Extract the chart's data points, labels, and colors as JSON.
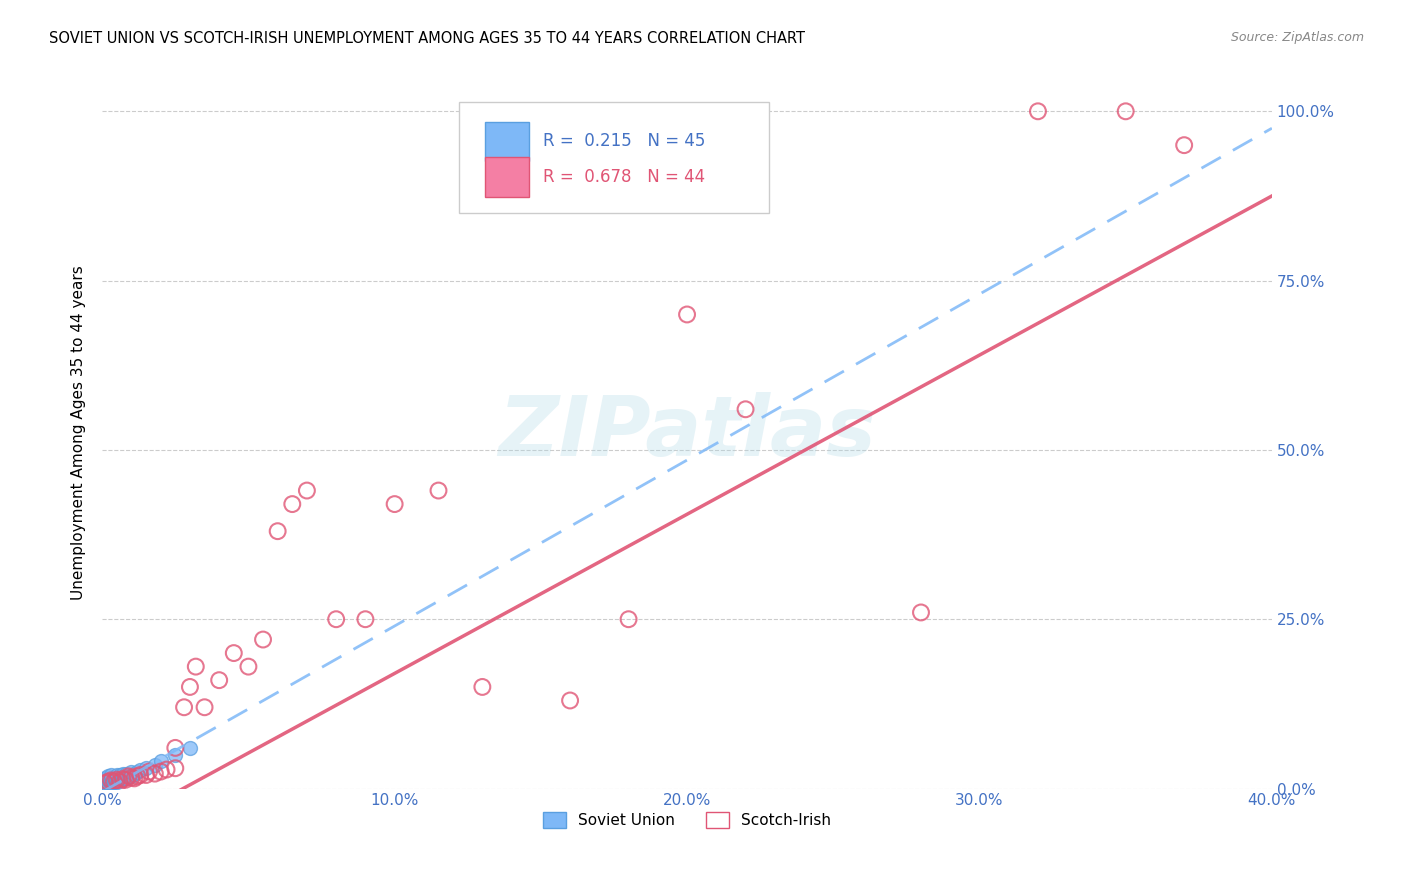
{
  "title": "SOVIET UNION VS SCOTCH-IRISH UNEMPLOYMENT AMONG AGES 35 TO 44 YEARS CORRELATION CHART",
  "source": "Source: ZipAtlas.com",
  "ylabel": "Unemployment Among Ages 35 to 44 years",
  "xlim": [
    0.0,
    0.4
  ],
  "ylim": [
    0.0,
    1.05
  ],
  "soviet_R": 0.215,
  "soviet_N": 45,
  "scotch_R": 0.678,
  "scotch_N": 44,
  "soviet_color": "#7EB8F7",
  "soviet_edge_color": "#5A9FE0",
  "scotch_color": "#F47FA4",
  "scotch_edge_color": "#E05575",
  "soviet_line_color": "#7EB8F7",
  "scotch_line_color": "#E05575",
  "watermark": "ZIPatlas",
  "legend_R1_color": "#4472C4",
  "legend_R2_color": "#E05575",
  "axis_color": "#4472C4",
  "soviet_x": [
    0.0,
    0.0,
    0.001,
    0.001,
    0.001,
    0.001,
    0.001,
    0.001,
    0.002,
    0.002,
    0.002,
    0.002,
    0.002,
    0.002,
    0.003,
    0.003,
    0.003,
    0.003,
    0.003,
    0.004,
    0.004,
    0.004,
    0.005,
    0.005,
    0.005,
    0.005,
    0.006,
    0.006,
    0.006,
    0.007,
    0.007,
    0.007,
    0.008,
    0.008,
    0.009,
    0.01,
    0.01,
    0.011,
    0.012,
    0.013,
    0.015,
    0.018,
    0.02,
    0.025,
    0.03
  ],
  "soviet_y": [
    0.0,
    0.002,
    0.003,
    0.005,
    0.007,
    0.01,
    0.012,
    0.015,
    0.005,
    0.008,
    0.01,
    0.012,
    0.015,
    0.018,
    0.008,
    0.01,
    0.013,
    0.016,
    0.02,
    0.01,
    0.013,
    0.016,
    0.01,
    0.013,
    0.016,
    0.02,
    0.012,
    0.015,
    0.02,
    0.015,
    0.018,
    0.022,
    0.016,
    0.022,
    0.018,
    0.018,
    0.025,
    0.022,
    0.025,
    0.028,
    0.03,
    0.035,
    0.04,
    0.05,
    0.06
  ],
  "scotch_x": [
    0.001,
    0.002,
    0.003,
    0.004,
    0.005,
    0.006,
    0.007,
    0.008,
    0.009,
    0.01,
    0.011,
    0.012,
    0.013,
    0.015,
    0.016,
    0.018,
    0.02,
    0.022,
    0.025,
    0.025,
    0.028,
    0.03,
    0.032,
    0.035,
    0.04,
    0.045,
    0.05,
    0.055,
    0.06,
    0.065,
    0.07,
    0.08,
    0.09,
    0.1,
    0.115,
    0.13,
    0.16,
    0.18,
    0.2,
    0.22,
    0.28,
    0.32,
    0.35,
    0.37
  ],
  "scotch_y": [
    0.008,
    0.01,
    0.012,
    0.01,
    0.013,
    0.01,
    0.014,
    0.013,
    0.018,
    0.016,
    0.015,
    0.018,
    0.02,
    0.02,
    0.025,
    0.022,
    0.025,
    0.028,
    0.03,
    0.06,
    0.12,
    0.15,
    0.18,
    0.12,
    0.16,
    0.2,
    0.18,
    0.22,
    0.38,
    0.42,
    0.44,
    0.25,
    0.25,
    0.42,
    0.44,
    0.15,
    0.13,
    0.25,
    0.7,
    0.56,
    0.26,
    1.0,
    1.0,
    0.95
  ]
}
